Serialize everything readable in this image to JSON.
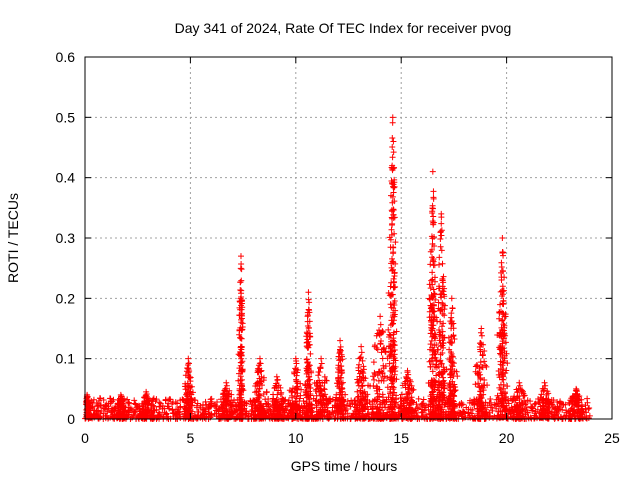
{
  "chart_data": {
    "type": "scatter",
    "title": "Day 341 of 2024, Rate Of TEC Index for receiver pvog",
    "xlabel": "GPS time / hours",
    "ylabel": "ROTI / TECUs",
    "xlim": [
      0,
      25
    ],
    "ylim": [
      0,
      0.6
    ],
    "xticks": [
      0,
      5,
      10,
      15,
      20,
      25
    ],
    "yticks": [
      0,
      0.1,
      0.2,
      0.3,
      0.4,
      0.5,
      0.6
    ],
    "xtick_labels": [
      "0",
      "5",
      "10",
      "15",
      "20",
      "25"
    ],
    "ytick_labels": [
      "0",
      "0.1",
      "0.2",
      "0.3",
      "0.4",
      "0.5",
      "0.6"
    ],
    "grid": true,
    "marker": "+",
    "color": "#ff0000",
    "x_data_range": [
      0,
      24
    ],
    "background": {
      "min": 0.0,
      "max": 0.035
    },
    "bursts": [
      {
        "center": 0.1,
        "width": 0.3,
        "peak": 0.04
      },
      {
        "center": 1.7,
        "width": 0.4,
        "peak": 0.04
      },
      {
        "center": 2.9,
        "width": 0.5,
        "peak": 0.045
      },
      {
        "center": 4.9,
        "width": 0.3,
        "peak": 0.1
      },
      {
        "center": 6.7,
        "width": 0.6,
        "peak": 0.06
      },
      {
        "center": 7.4,
        "width": 0.15,
        "peak": 0.27
      },
      {
        "center": 8.3,
        "width": 0.4,
        "peak": 0.1
      },
      {
        "center": 9.1,
        "width": 0.5,
        "peak": 0.07
      },
      {
        "center": 10.0,
        "width": 0.4,
        "peak": 0.1
      },
      {
        "center": 10.6,
        "width": 0.2,
        "peak": 0.21
      },
      {
        "center": 11.2,
        "width": 0.5,
        "peak": 0.1
      },
      {
        "center": 12.1,
        "width": 0.3,
        "peak": 0.13
      },
      {
        "center": 13.1,
        "width": 0.4,
        "peak": 0.12
      },
      {
        "center": 14.0,
        "width": 0.6,
        "peak": 0.17
      },
      {
        "center": 14.6,
        "width": 0.25,
        "peak": 0.5
      },
      {
        "center": 15.3,
        "width": 0.5,
        "peak": 0.08
      },
      {
        "center": 16.5,
        "width": 0.25,
        "peak": 0.41
      },
      {
        "center": 16.9,
        "width": 0.3,
        "peak": 0.34
      },
      {
        "center": 17.4,
        "width": 0.3,
        "peak": 0.2
      },
      {
        "center": 18.8,
        "width": 0.4,
        "peak": 0.15
      },
      {
        "center": 19.8,
        "width": 0.3,
        "peak": 0.3
      },
      {
        "center": 20.6,
        "width": 0.5,
        "peak": 0.06
      },
      {
        "center": 21.8,
        "width": 0.4,
        "peak": 0.06
      },
      {
        "center": 23.3,
        "width": 0.5,
        "peak": 0.05
      }
    ]
  }
}
